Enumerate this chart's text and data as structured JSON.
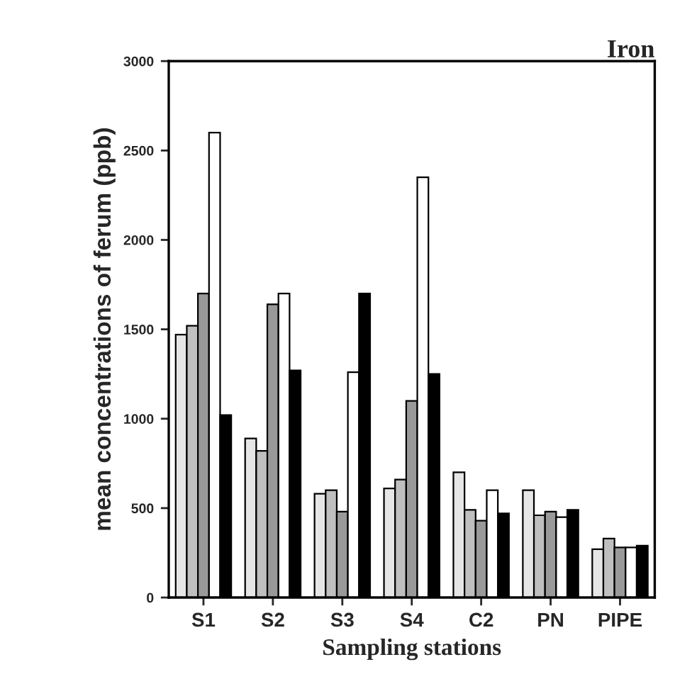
{
  "chart_data": {
    "type": "bar",
    "title": "Iron",
    "xlabel": "Sampling stations",
    "ylabel": "mean concentrations of ferum (ppb)",
    "categories": [
      "S1",
      "S2",
      "S3",
      "S4",
      "C2",
      "PN",
      "PIPE"
    ],
    "series": [
      {
        "color": "#e6e6e6",
        "values": [
          1470,
          890,
          580,
          610,
          700,
          600,
          270
        ]
      },
      {
        "color": "#bfbfbf",
        "values": [
          1520,
          820,
          600,
          660,
          490,
          460,
          330
        ]
      },
      {
        "color": "#999999",
        "values": [
          1700,
          1640,
          480,
          1100,
          430,
          480,
          280
        ]
      },
      {
        "color": "#ffffff",
        "values": [
          2600,
          1700,
          1260,
          2350,
          600,
          450,
          280
        ]
      },
      {
        "color": "#000000",
        "values": [
          1020,
          1270,
          1700,
          1250,
          470,
          490,
          290
        ]
      }
    ],
    "ylim": [
      0,
      3000
    ],
    "yticks": [
      0,
      500,
      1000,
      1500,
      2000,
      2500,
      3000
    ],
    "grid": false,
    "legend": false
  }
}
